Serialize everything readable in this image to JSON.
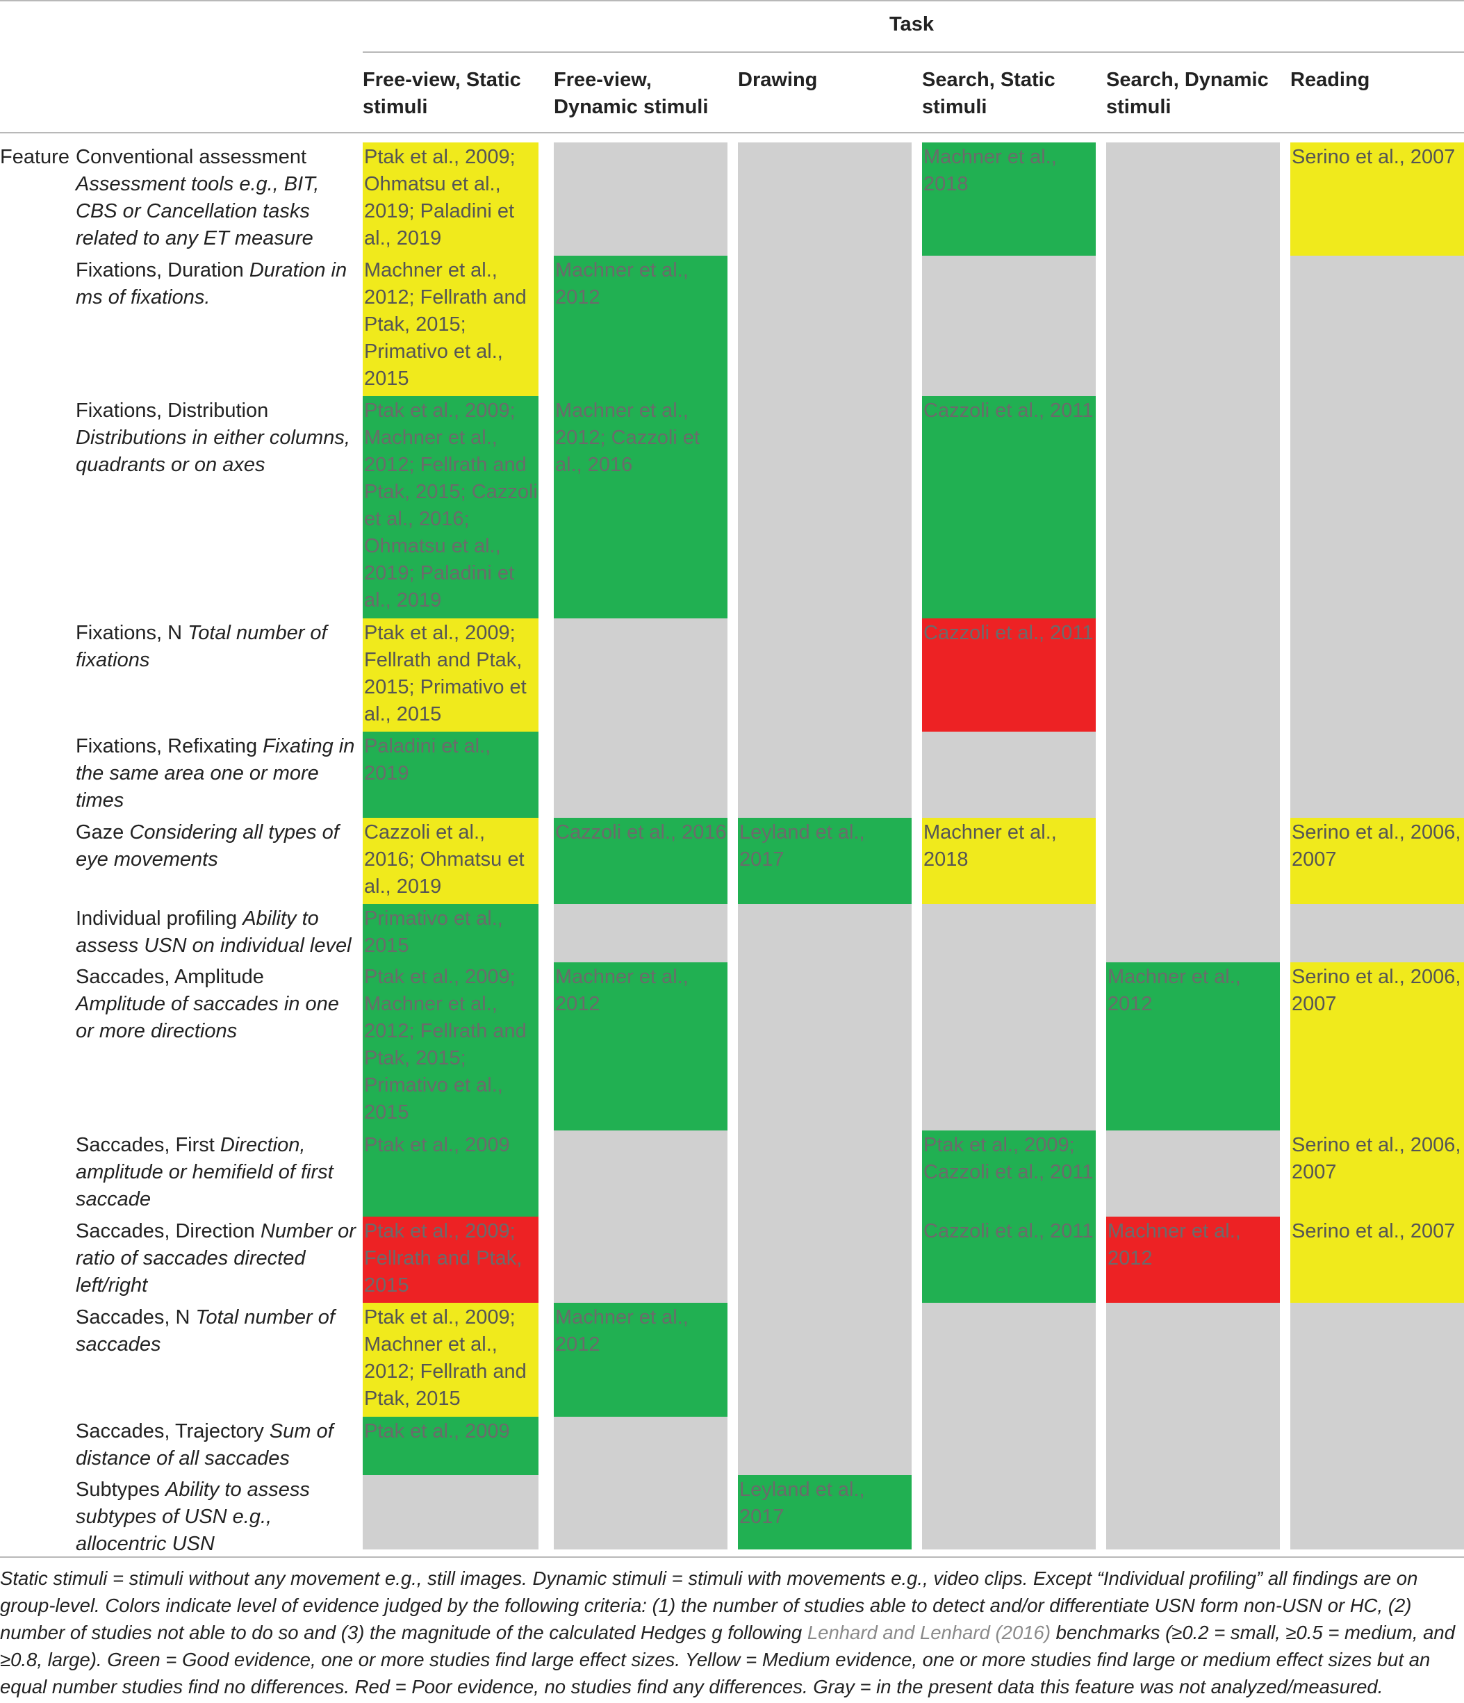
{
  "header": {
    "task": "Task",
    "columns": [
      "Free-view, Static stimuli",
      "Free-view, Dynamic stimuli",
      "Drawing",
      "Search, Static stimuli",
      "Search, Dynamic stimuli",
      "Reading"
    ]
  },
  "row_group_label": "Feature",
  "rows": [
    {
      "name": "Conventional assessment",
      "desc": "Assessment tools e.g., BIT, CBS or Cancellation tasks related to any ET measure"
    },
    {
      "name": "Fixations, Duration",
      "desc": "Duration in ms of fixations."
    },
    {
      "name": "Fixations, Distribution",
      "desc": "Distributions in either columns, quadrants or on axes"
    },
    {
      "name": "Fixations, N",
      "desc": "Total number of fixations"
    },
    {
      "name": "Fixations, Refixating",
      "desc": "Fixating in the same area one or more times"
    },
    {
      "name": "Gaze",
      "desc": "Considering all types of eye movements"
    },
    {
      "name": "Individual profiling",
      "desc": "Ability to assess USN on individual level"
    },
    {
      "name": "Saccades, Amplitude",
      "desc": "Amplitude of saccades in one or more directions"
    },
    {
      "name": "Saccades, First",
      "desc": "Direction, amplitude or hemifield of first saccade"
    },
    {
      "name": "Saccades, Direction",
      "desc": "Number or ratio of saccades directed left/right"
    },
    {
      "name": "Saccades, N",
      "desc": "Total number of saccades"
    },
    {
      "name": "Saccades, Trajectory",
      "desc": "Sum of distance of all saccades"
    },
    {
      "name": "Subtypes",
      "desc": "Ability to assess subtypes of USN e.g., allocentric USN"
    }
  ],
  "colors": {
    "green": "#21b052",
    "yellow": "#f0ea1c",
    "red": "#ed2224",
    "gray": "#d0d0d0"
  },
  "cells": [
    {
      "col": 0,
      "rows": [
        0,
        0
      ],
      "color": "yellow",
      "text": "Ptak et al., 2009; Ohmatsu et al., 2019; Paladini et al., 2019"
    },
    {
      "col": 0,
      "rows": [
        1,
        1
      ],
      "color": "yellow",
      "text": "Machner et al., 2012; Fellrath and Ptak, 2015; Primativo et al., 2015"
    },
    {
      "col": 0,
      "rows": [
        2,
        2
      ],
      "color": "green",
      "text": "Ptak et al., 2009; Machner et al., 2012; Fellrath and Ptak, 2015; Cazzoli et al., 2016; Ohmatsu et al., 2019; Paladini et al., 2019"
    },
    {
      "col": 0,
      "rows": [
        3,
        3
      ],
      "color": "yellow",
      "text": "Ptak et al., 2009; Fellrath and Ptak, 2015; Primativo et al., 2015"
    },
    {
      "col": 0,
      "rows": [
        4,
        4
      ],
      "color": "green",
      "text": "Paladini et al., 2019"
    },
    {
      "col": 0,
      "rows": [
        5,
        5
      ],
      "color": "yellow",
      "text": "Cazzoli et al., 2016; Ohmatsu et al., 2019"
    },
    {
      "col": 0,
      "rows": [
        6,
        6
      ],
      "color": "green",
      "text": "Primativo et al., 2015"
    },
    {
      "col": 0,
      "rows": [
        7,
        7
      ],
      "color": "green",
      "text": "Ptak et al., 2009; Machner et al., 2012; Fellrath and Ptak, 2015; Primativo et al., 2015"
    },
    {
      "col": 0,
      "rows": [
        8,
        8
      ],
      "color": "green",
      "text": "Ptak et al., 2009"
    },
    {
      "col": 0,
      "rows": [
        9,
        9
      ],
      "color": "red",
      "text": "Ptak et al., 2009; Fellrath and Ptak, 2015"
    },
    {
      "col": 0,
      "rows": [
        10,
        10
      ],
      "color": "yellow",
      "text": "Ptak et al., 2009; Machner et al., 2012; Fellrath and Ptak, 2015"
    },
    {
      "col": 0,
      "rows": [
        11,
        11
      ],
      "color": "green",
      "text": "Ptak et al., 2009"
    },
    {
      "col": 0,
      "rows": [
        12,
        12
      ],
      "color": "gray",
      "text": ""
    },
    {
      "col": 1,
      "rows": [
        0,
        0
      ],
      "color": "gray",
      "text": ""
    },
    {
      "col": 1,
      "rows": [
        1,
        1
      ],
      "color": "green",
      "text": "Machner et al., 2012"
    },
    {
      "col": 1,
      "rows": [
        2,
        2
      ],
      "color": "green",
      "text": "Machner et al., 2012; Cazzoli et al., 2016"
    },
    {
      "col": 1,
      "rows": [
        3,
        4
      ],
      "color": "gray",
      "text": ""
    },
    {
      "col": 1,
      "rows": [
        5,
        5
      ],
      "color": "green",
      "text": "Cazzoli et al., 2016"
    },
    {
      "col": 1,
      "rows": [
        6,
        6
      ],
      "color": "gray",
      "text": ""
    },
    {
      "col": 1,
      "rows": [
        7,
        7
      ],
      "color": "green",
      "text": "Machner et al., 2012"
    },
    {
      "col": 1,
      "rows": [
        8,
        9
      ],
      "color": "gray",
      "text": ""
    },
    {
      "col": 1,
      "rows": [
        10,
        10
      ],
      "color": "green",
      "text": "Machner et al., 2012"
    },
    {
      "col": 1,
      "rows": [
        11,
        12
      ],
      "color": "gray",
      "text": ""
    },
    {
      "col": 2,
      "rows": [
        0,
        4
      ],
      "color": "gray",
      "text": ""
    },
    {
      "col": 2,
      "rows": [
        5,
        5
      ],
      "color": "green",
      "text": "Leyland et al., 2017"
    },
    {
      "col": 2,
      "rows": [
        6,
        11
      ],
      "color": "gray",
      "text": ""
    },
    {
      "col": 2,
      "rows": [
        12,
        12
      ],
      "color": "green",
      "text": "Leyland et al., 2017"
    },
    {
      "col": 3,
      "rows": [
        0,
        0
      ],
      "color": "green",
      "text": "Machner et al., 2018"
    },
    {
      "col": 3,
      "rows": [
        1,
        1
      ],
      "color": "gray",
      "text": ""
    },
    {
      "col": 3,
      "rows": [
        2,
        2
      ],
      "color": "green",
      "text": "Cazzoli et al., 2011"
    },
    {
      "col": 3,
      "rows": [
        3,
        3
      ],
      "color": "red",
      "text": "Cazzoli et al., 2011"
    },
    {
      "col": 3,
      "rows": [
        4,
        4
      ],
      "color": "gray",
      "text": ""
    },
    {
      "col": 3,
      "rows": [
        5,
        5
      ],
      "color": "yellow",
      "text": "Machner et al., 2018"
    },
    {
      "col": 3,
      "rows": [
        6,
        7
      ],
      "color": "gray",
      "text": ""
    },
    {
      "col": 3,
      "rows": [
        8,
        8
      ],
      "color": "green",
      "text": "Ptak et al., 2009; Cazzoli et al., 2011"
    },
    {
      "col": 3,
      "rows": [
        9,
        9
      ],
      "color": "green",
      "text": "Cazzoli et al., 2011"
    },
    {
      "col": 3,
      "rows": [
        10,
        12
      ],
      "color": "gray",
      "text": ""
    },
    {
      "col": 4,
      "rows": [
        0,
        6
      ],
      "color": "gray",
      "text": ""
    },
    {
      "col": 4,
      "rows": [
        7,
        7
      ],
      "color": "green",
      "text": "Machner et al., 2012"
    },
    {
      "col": 4,
      "rows": [
        8,
        8
      ],
      "color": "gray",
      "text": ""
    },
    {
      "col": 4,
      "rows": [
        9,
        9
      ],
      "color": "red",
      "text": "Machner et al., 2012"
    },
    {
      "col": 4,
      "rows": [
        10,
        12
      ],
      "color": "gray",
      "text": ""
    },
    {
      "col": 5,
      "rows": [
        0,
        0
      ],
      "color": "yellow",
      "text": "Serino et al., 2007"
    },
    {
      "col": 5,
      "rows": [
        1,
        4
      ],
      "color": "gray",
      "text": ""
    },
    {
      "col": 5,
      "rows": [
        5,
        5
      ],
      "color": "yellow",
      "text": "Serino et al., 2006, 2007"
    },
    {
      "col": 5,
      "rows": [
        6,
        6
      ],
      "color": "gray",
      "text": ""
    },
    {
      "col": 5,
      "rows": [
        7,
        7
      ],
      "color": "yellow",
      "text": "Serino et al., 2006, 2007"
    },
    {
      "col": 5,
      "rows": [
        8,
        8
      ],
      "color": "yellow",
      "text": "Serino et al., 2006, 2007"
    },
    {
      "col": 5,
      "rows": [
        9,
        9
      ],
      "color": "yellow",
      "text": "Serino et al., 2007"
    },
    {
      "col": 5,
      "rows": [
        10,
        12
      ],
      "color": "gray",
      "text": ""
    }
  ],
  "footnote": {
    "part1": "Static stimuli = stimuli without any movement e.g., still images. Dynamic stimuli = stimuli with movements e.g., video clips. Except “Individual profiling” all findings are on group-level. Colors indicate level of evidence judged by the following criteria: (1) the number of studies able to detect and/or differentiate USN form non-USN or HC, (2) number of studies not able to do so and (3) the magnitude of the calculated Hedges g following ",
    "ref": "Lenhard and Lenhard (2016)",
    "part2": " benchmarks (≥0.2 = small, ≥0.5 = medium, and ≥0.8, large). Green = Good evidence, one or more studies find large effect sizes. Yellow = Medium evidence, one or more studies find large or medium effect sizes but an equal number studies find no differences. Red = Poor evidence, no studies find any differences. Gray = in the present data this feature was not analyzed/measured."
  }
}
